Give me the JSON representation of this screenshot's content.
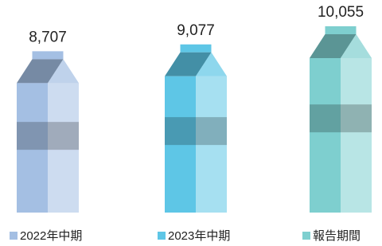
{
  "chart_data": {
    "type": "bar",
    "categories": [
      "2022年中期",
      "2023年中期",
      "報告期間"
    ],
    "values": [
      8707,
      9077,
      10055
    ],
    "value_labels": [
      "8,707",
      "9,077",
      "10,055"
    ],
    "colors": [
      "#a4bfe3",
      "#5ec6e6",
      "#7ecfcf"
    ]
  }
}
